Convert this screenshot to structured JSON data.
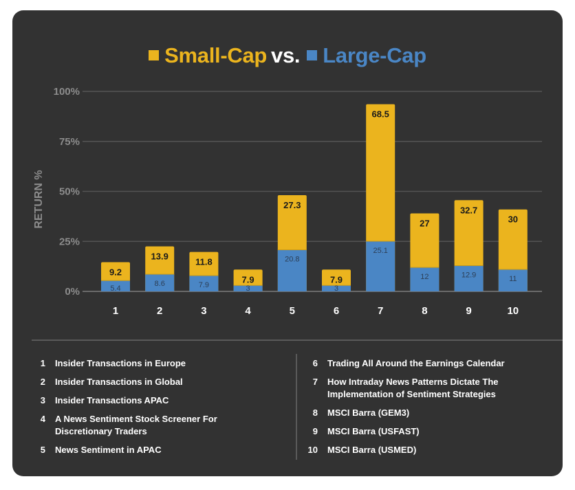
{
  "title": {
    "small_label": "Small-Cap",
    "vs_label": "vs.",
    "large_label": "Large-Cap"
  },
  "colors": {
    "small_cap": "#ebb41e",
    "large_cap": "#4a86c5",
    "background": "#323232",
    "grid": "#555555"
  },
  "chart_data": {
    "type": "bar",
    "stacked": true,
    "title": "Small-Cap vs. Large-Cap",
    "xlabel": "",
    "ylabel": "RETURN %",
    "ylim": [
      0,
      100
    ],
    "yticks": [
      "0%",
      "25%",
      "50%",
      "75%",
      "100%"
    ],
    "yticks_values": [
      0,
      25,
      50,
      75,
      100
    ],
    "grid": true,
    "categories": [
      "1",
      "2",
      "3",
      "4",
      "5",
      "6",
      "7",
      "8",
      "9",
      "10"
    ],
    "series": [
      {
        "name": "Large-Cap",
        "color": "#4a86c5",
        "values": [
          5.4,
          8.6,
          7.9,
          3,
          20.8,
          3,
          25.1,
          12,
          12.9,
          11
        ]
      },
      {
        "name": "Small-Cap",
        "color": "#ebb41e",
        "values": [
          9.2,
          13.9,
          11.8,
          7.9,
          27.3,
          7.9,
          68.5,
          27,
          32.7,
          30
        ]
      }
    ],
    "legend": "top"
  },
  "legend_items": {
    "left": [
      {
        "num": "1",
        "text": "Insider Transactions in Europe"
      },
      {
        "num": "2",
        "text": "Insider Transactions in Global"
      },
      {
        "num": "3",
        "text": "Insider Transactions APAC"
      },
      {
        "num": "4",
        "text": "A News Sentiment Stock Screener For Discretionary Traders"
      },
      {
        "num": "5",
        "text": "News Sentiment in APAC"
      }
    ],
    "right": [
      {
        "num": "6",
        "text": "Trading All Around the Earnings Calendar"
      },
      {
        "num": "7",
        "text": "How Intraday News Patterns Dictate The Implementation of Sentiment Strategies"
      },
      {
        "num": "8",
        "text": "MSCI Barra (GEM3)"
      },
      {
        "num": "9",
        "text": "MSCI Barra (USFAST)"
      },
      {
        "num": "10",
        "text": "MSCI Barra (USMED)"
      }
    ]
  }
}
